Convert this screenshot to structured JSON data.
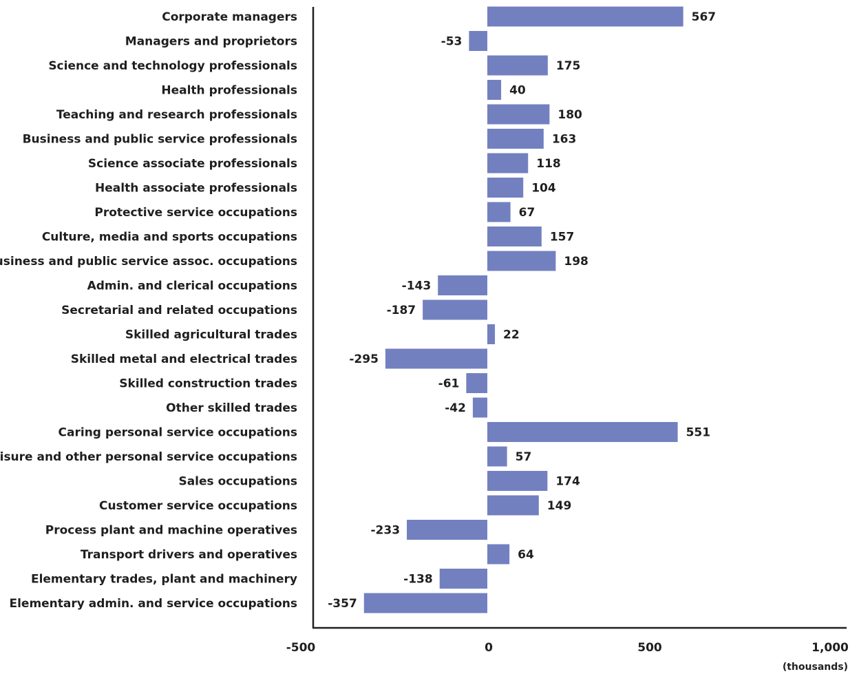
{
  "chart_data": {
    "type": "bar",
    "orientation": "horizontal",
    "categories": [
      "Corporate managers",
      "Managers and proprietors",
      "Science and technology professionals",
      "Health professionals",
      "Teaching and research professionals",
      "Business and public service professionals",
      "Science associate professionals",
      "Health associate professionals",
      "Protective service occupations",
      "Culture, media and sports occupations",
      "Business and public service assoc. occupations",
      "Admin. and clerical occupations",
      "Secretarial and related occupations",
      "Skilled agricultural trades",
      "Skilled metal and electrical trades",
      "Skilled construction trades",
      "Other skilled trades",
      "Caring personal service occupations",
      "Leisure and other personal service occupations",
      "Sales occupations",
      "Customer service occupations",
      "Process plant and machine operatives",
      "Transport drivers and operatives",
      "Elementary trades, plant and machinery",
      "Elementary admin. and service occupations"
    ],
    "values": [
      567,
      -53,
      175,
      40,
      180,
      163,
      118,
      104,
      67,
      157,
      198,
      -143,
      -187,
      22,
      -295,
      -61,
      -42,
      551,
      57,
      174,
      149,
      -233,
      64,
      -138,
      -357
    ],
    "xlim": [
      -500,
      1000
    ],
    "ticks": [
      -500,
      0,
      500,
      1000
    ],
    "tick_labels": [
      "-500",
      "0",
      "500",
      "1,000"
    ],
    "unit_label": "(thousands)",
    "bar_color": "#7380c0",
    "grid": false
  }
}
